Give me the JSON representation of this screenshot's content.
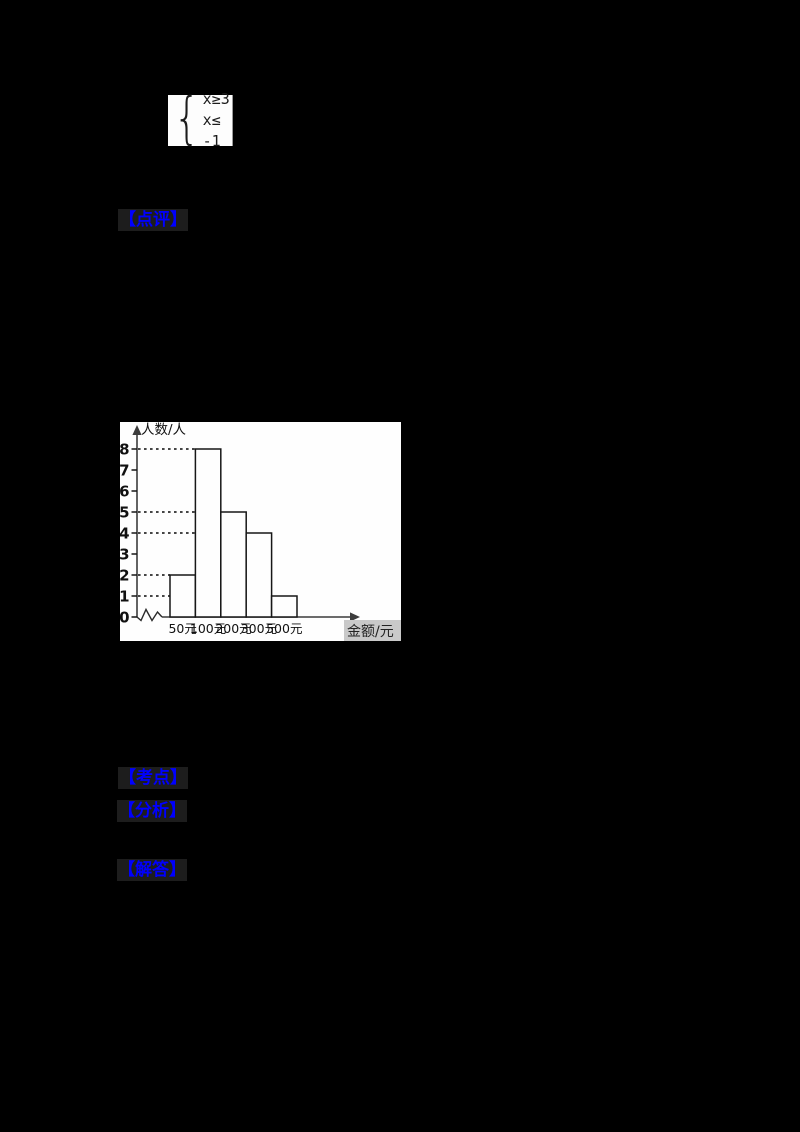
{
  "page": {
    "background": "#000000"
  },
  "formula": {
    "brace": "{",
    "line1": "x≥3",
    "line2": "x≤ -1"
  },
  "labels": {
    "comment": "【点评】",
    "kaodian": "【考点】",
    "fenxi": "【分析】",
    "jieda": "【解答】"
  },
  "colors": {
    "label_blue": "#0000fe",
    "label_bg": "#1d1d1d",
    "chart_bg": "#fefefe",
    "axis": "#3c3c3c",
    "bar_stroke": "#171717",
    "xlabel_patch": "#c9c9c9"
  },
  "chart_data": {
    "type": "bar",
    "categories": [
      "50元",
      "100元",
      "200元",
      "300元",
      "500元"
    ],
    "values": [
      2,
      8,
      5,
      4,
      1
    ],
    "title": "",
    "xlabel": "金额/元",
    "ylabel": "人数/人",
    "yticks": [
      0,
      1,
      2,
      3,
      4,
      5,
      6,
      7,
      8
    ],
    "ylim": [
      0,
      8
    ],
    "grid": "dashed-leader-to-bar",
    "axis_break_on_x": true,
    "legend": "none"
  }
}
